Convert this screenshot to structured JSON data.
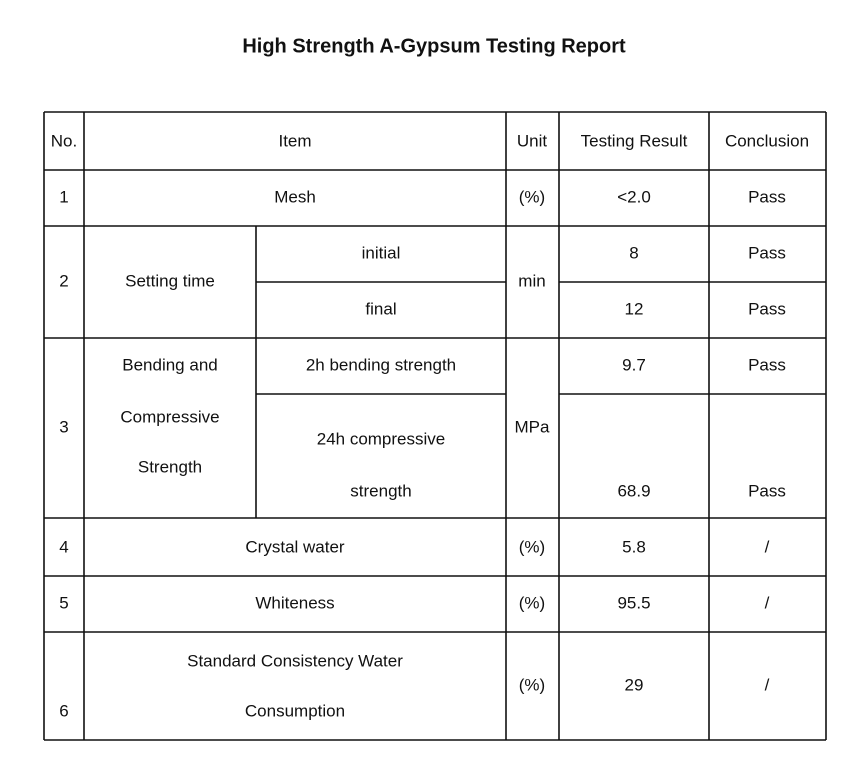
{
  "title": "High Strength A-Gypsum Testing Report",
  "table": {
    "header": [
      "No.",
      "Item",
      "Unit",
      "Testing Result",
      "Conclusion"
    ],
    "rows": [
      {
        "no": "1",
        "item": [
          "Mesh"
        ],
        "unit": "(%)",
        "result": "<2.0",
        "conclusion": "Pass"
      },
      {
        "no": "2",
        "item": [
          "Setting time"
        ],
        "unit": "min",
        "sub": [
          {
            "item": [
              "initial"
            ],
            "result": "8",
            "conclusion": "Pass"
          },
          {
            "item": [
              "final"
            ],
            "result": "12",
            "conclusion": "Pass"
          }
        ]
      },
      {
        "no": "3",
        "item": [
          "Bending and",
          "Compressive",
          "Strength"
        ],
        "unit": "MPa",
        "sub": [
          {
            "item": [
              "2h bending strength"
            ],
            "result": "9.7",
            "conclusion": "Pass"
          },
          {
            "item": [
              "24h compressive",
              "strength"
            ],
            "result": "68.9",
            "conclusion": "Pass"
          }
        ]
      },
      {
        "no": "4",
        "item": [
          "Crystal water"
        ],
        "unit": "(%)",
        "result": "5.8",
        "conclusion": "/"
      },
      {
        "no": "5",
        "item": [
          "Whiteness"
        ],
        "unit": "(%)",
        "result": "95.5",
        "conclusion": "/"
      },
      {
        "no": "6",
        "item": [
          "Standard Consistency Water",
          "Consumption"
        ],
        "unit": "(%)",
        "result": "29",
        "conclusion": "/"
      }
    ]
  }
}
